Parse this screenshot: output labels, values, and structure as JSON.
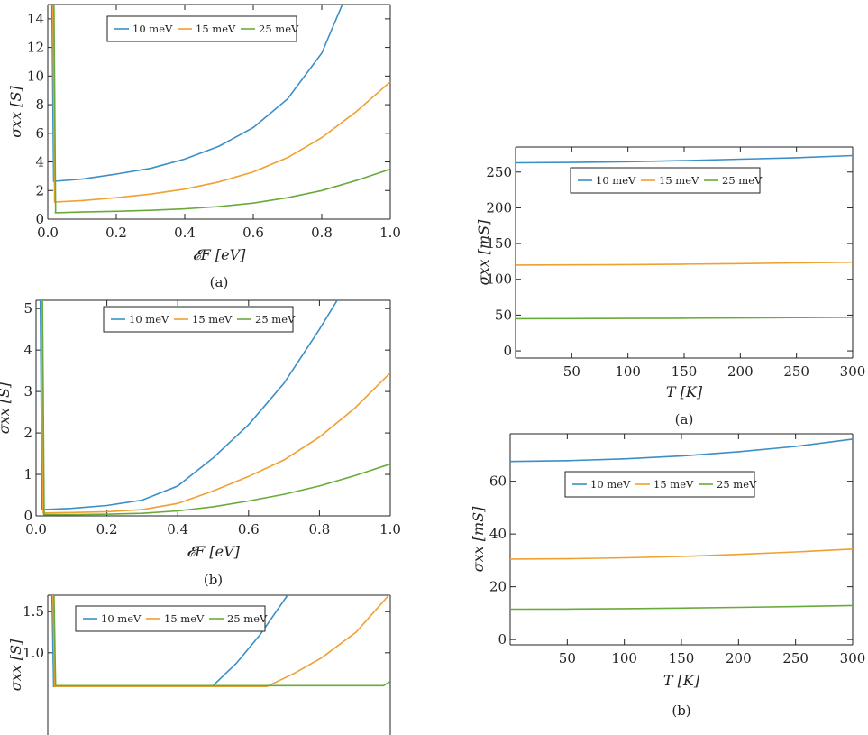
{
  "colors": {
    "s1": "#3a8fc7",
    "s2": "#f0a030",
    "s3": "#6aaa3a",
    "frame": "#222222"
  },
  "chart_data": [
    {
      "id": "left-a",
      "type": "line",
      "caption": "(a)",
      "xlabel": "𝓔F [eV]",
      "ylabel": "σxx [S]",
      "xlim": [
        0,
        1.0
      ],
      "ylim": [
        0,
        15
      ],
      "xticks": [
        "0.0",
        "0.2",
        "0.4",
        "0.6",
        "0.8",
        "1.0"
      ],
      "yticks": [
        "0",
        "2",
        "4",
        "6",
        "8",
        "10",
        "12",
        "14"
      ],
      "legend_placement": "top",
      "series": [
        {
          "name": "10 meV",
          "x": [
            0.02,
            0.1,
            0.2,
            0.3,
            0.4,
            0.5,
            0.6,
            0.7,
            0.8,
            0.86
          ],
          "y": [
            2.65,
            2.8,
            3.15,
            3.55,
            4.2,
            5.1,
            6.4,
            8.4,
            11.6,
            15
          ]
        },
        {
          "name": "15 meV",
          "x": [
            0.02,
            0.1,
            0.2,
            0.3,
            0.4,
            0.5,
            0.6,
            0.7,
            0.8,
            0.9,
            1.0
          ],
          "y": [
            1.2,
            1.3,
            1.5,
            1.75,
            2.1,
            2.6,
            3.3,
            4.3,
            5.7,
            7.5,
            9.6
          ]
        },
        {
          "name": "25 meV",
          "x": [
            0.02,
            0.1,
            0.2,
            0.3,
            0.4,
            0.5,
            0.6,
            0.7,
            0.8,
            0.9,
            1.0
          ],
          "y": [
            0.45,
            0.5,
            0.55,
            0.62,
            0.72,
            0.88,
            1.12,
            1.5,
            2.0,
            2.7,
            3.5
          ]
        }
      ]
    },
    {
      "id": "left-b",
      "type": "line",
      "caption": "(b)",
      "xlabel": "𝓔F [eV]",
      "ylabel": "σxx [S]",
      "xlim": [
        0,
        1.0
      ],
      "ylim": [
        0,
        5.2
      ],
      "xticks": [
        "0.0",
        "0.2",
        "0.4",
        "0.6",
        "0.8",
        "1.0"
      ],
      "yticks": [
        "0",
        "1",
        "2",
        "3",
        "4",
        "5"
      ],
      "legend_placement": "top",
      "series": [
        {
          "name": "10 meV",
          "x": [
            0.02,
            0.1,
            0.2,
            0.3,
            0.4,
            0.5,
            0.6,
            0.7,
            0.8,
            0.85
          ],
          "y": [
            0.15,
            0.18,
            0.25,
            0.38,
            0.72,
            1.4,
            2.2,
            3.2,
            4.5,
            5.2
          ]
        },
        {
          "name": "15 meV",
          "x": [
            0.02,
            0.1,
            0.2,
            0.3,
            0.4,
            0.5,
            0.6,
            0.7,
            0.8,
            0.9,
            1.0
          ],
          "y": [
            0.07,
            0.08,
            0.1,
            0.15,
            0.3,
            0.6,
            0.95,
            1.35,
            1.9,
            2.6,
            3.45
          ]
        },
        {
          "name": "25 meV",
          "x": [
            0.02,
            0.1,
            0.2,
            0.3,
            0.4,
            0.5,
            0.6,
            0.7,
            0.8,
            0.9,
            1.0
          ],
          "y": [
            0.03,
            0.03,
            0.04,
            0.06,
            0.12,
            0.22,
            0.36,
            0.52,
            0.72,
            0.97,
            1.25
          ]
        }
      ]
    },
    {
      "id": "left-c",
      "type": "line",
      "caption": "",
      "xlabel": "",
      "ylabel": "σxx [S]",
      "xlim": [
        0,
        1.0
      ],
      "ylim": [
        0,
        1.7
      ],
      "xticks": [],
      "yticks": [
        "1.0",
        "1.5"
      ],
      "legend_placement": "top",
      "series": [
        {
          "name": "10 meV",
          "x": [
            0.48,
            0.55,
            0.62,
            0.7
          ],
          "y": [
            0.59,
            0.87,
            1.22,
            1.7
          ]
        },
        {
          "name": "15 meV",
          "x": [
            0.64,
            0.72,
            0.8,
            0.9,
            1.0
          ],
          "y": [
            0.59,
            0.75,
            0.94,
            1.25,
            1.72
          ]
        },
        {
          "name": "25 meV",
          "x": [
            0.98,
            1.0
          ],
          "y": [
            0.6,
            0.65
          ]
        }
      ]
    },
    {
      "id": "right-a",
      "type": "line",
      "caption": "(a)",
      "xlabel": "T [K]",
      "ylabel": "σxx [mS]",
      "xlim": [
        0,
        300
      ],
      "ylim": [
        -10,
        285
      ],
      "xticks": [
        "50",
        "100",
        "150",
        "200",
        "250",
        "300"
      ],
      "yticks": [
        "0",
        "50",
        "100",
        "150",
        "200",
        "250"
      ],
      "legend_placement": "top",
      "series": [
        {
          "name": "10 meV",
          "x": [
            0,
            50,
            100,
            150,
            200,
            250,
            300
          ],
          "y": [
            263,
            263.5,
            264.5,
            266,
            268,
            270,
            273
          ]
        },
        {
          "name": "15 meV",
          "x": [
            0,
            50,
            100,
            150,
            200,
            250,
            300
          ],
          "y": [
            120,
            120.2,
            120.6,
            121.2,
            122,
            123,
            124
          ]
        },
        {
          "name": "25 meV",
          "x": [
            0,
            50,
            100,
            150,
            200,
            250,
            300
          ],
          "y": [
            45,
            45.1,
            45.3,
            45.6,
            46,
            46.5,
            47
          ]
        }
      ]
    },
    {
      "id": "right-b",
      "type": "line",
      "caption": "(b)",
      "xlabel": "T [K]",
      "ylabel": "σxx [mS]",
      "xlim": [
        0,
        300
      ],
      "ylim": [
        -2,
        78
      ],
      "xticks": [
        "50",
        "100",
        "150",
        "200",
        "250",
        "300"
      ],
      "yticks": [
        "0",
        "20",
        "40",
        "60"
      ],
      "legend_placement": "top",
      "series": [
        {
          "name": "10 meV",
          "x": [
            0,
            50,
            100,
            150,
            200,
            250,
            300
          ],
          "y": [
            67.5,
            67.8,
            68.5,
            69.6,
            71.2,
            73.2,
            76
          ]
        },
        {
          "name": "15 meV",
          "x": [
            0,
            50,
            100,
            150,
            200,
            250,
            300
          ],
          "y": [
            30.5,
            30.6,
            31,
            31.5,
            32.3,
            33.2,
            34.3
          ]
        },
        {
          "name": "25 meV",
          "x": [
            0,
            50,
            100,
            150,
            200,
            250,
            300
          ],
          "y": [
            11.5,
            11.55,
            11.7,
            11.9,
            12.2,
            12.5,
            12.9
          ]
        }
      ]
    }
  ]
}
